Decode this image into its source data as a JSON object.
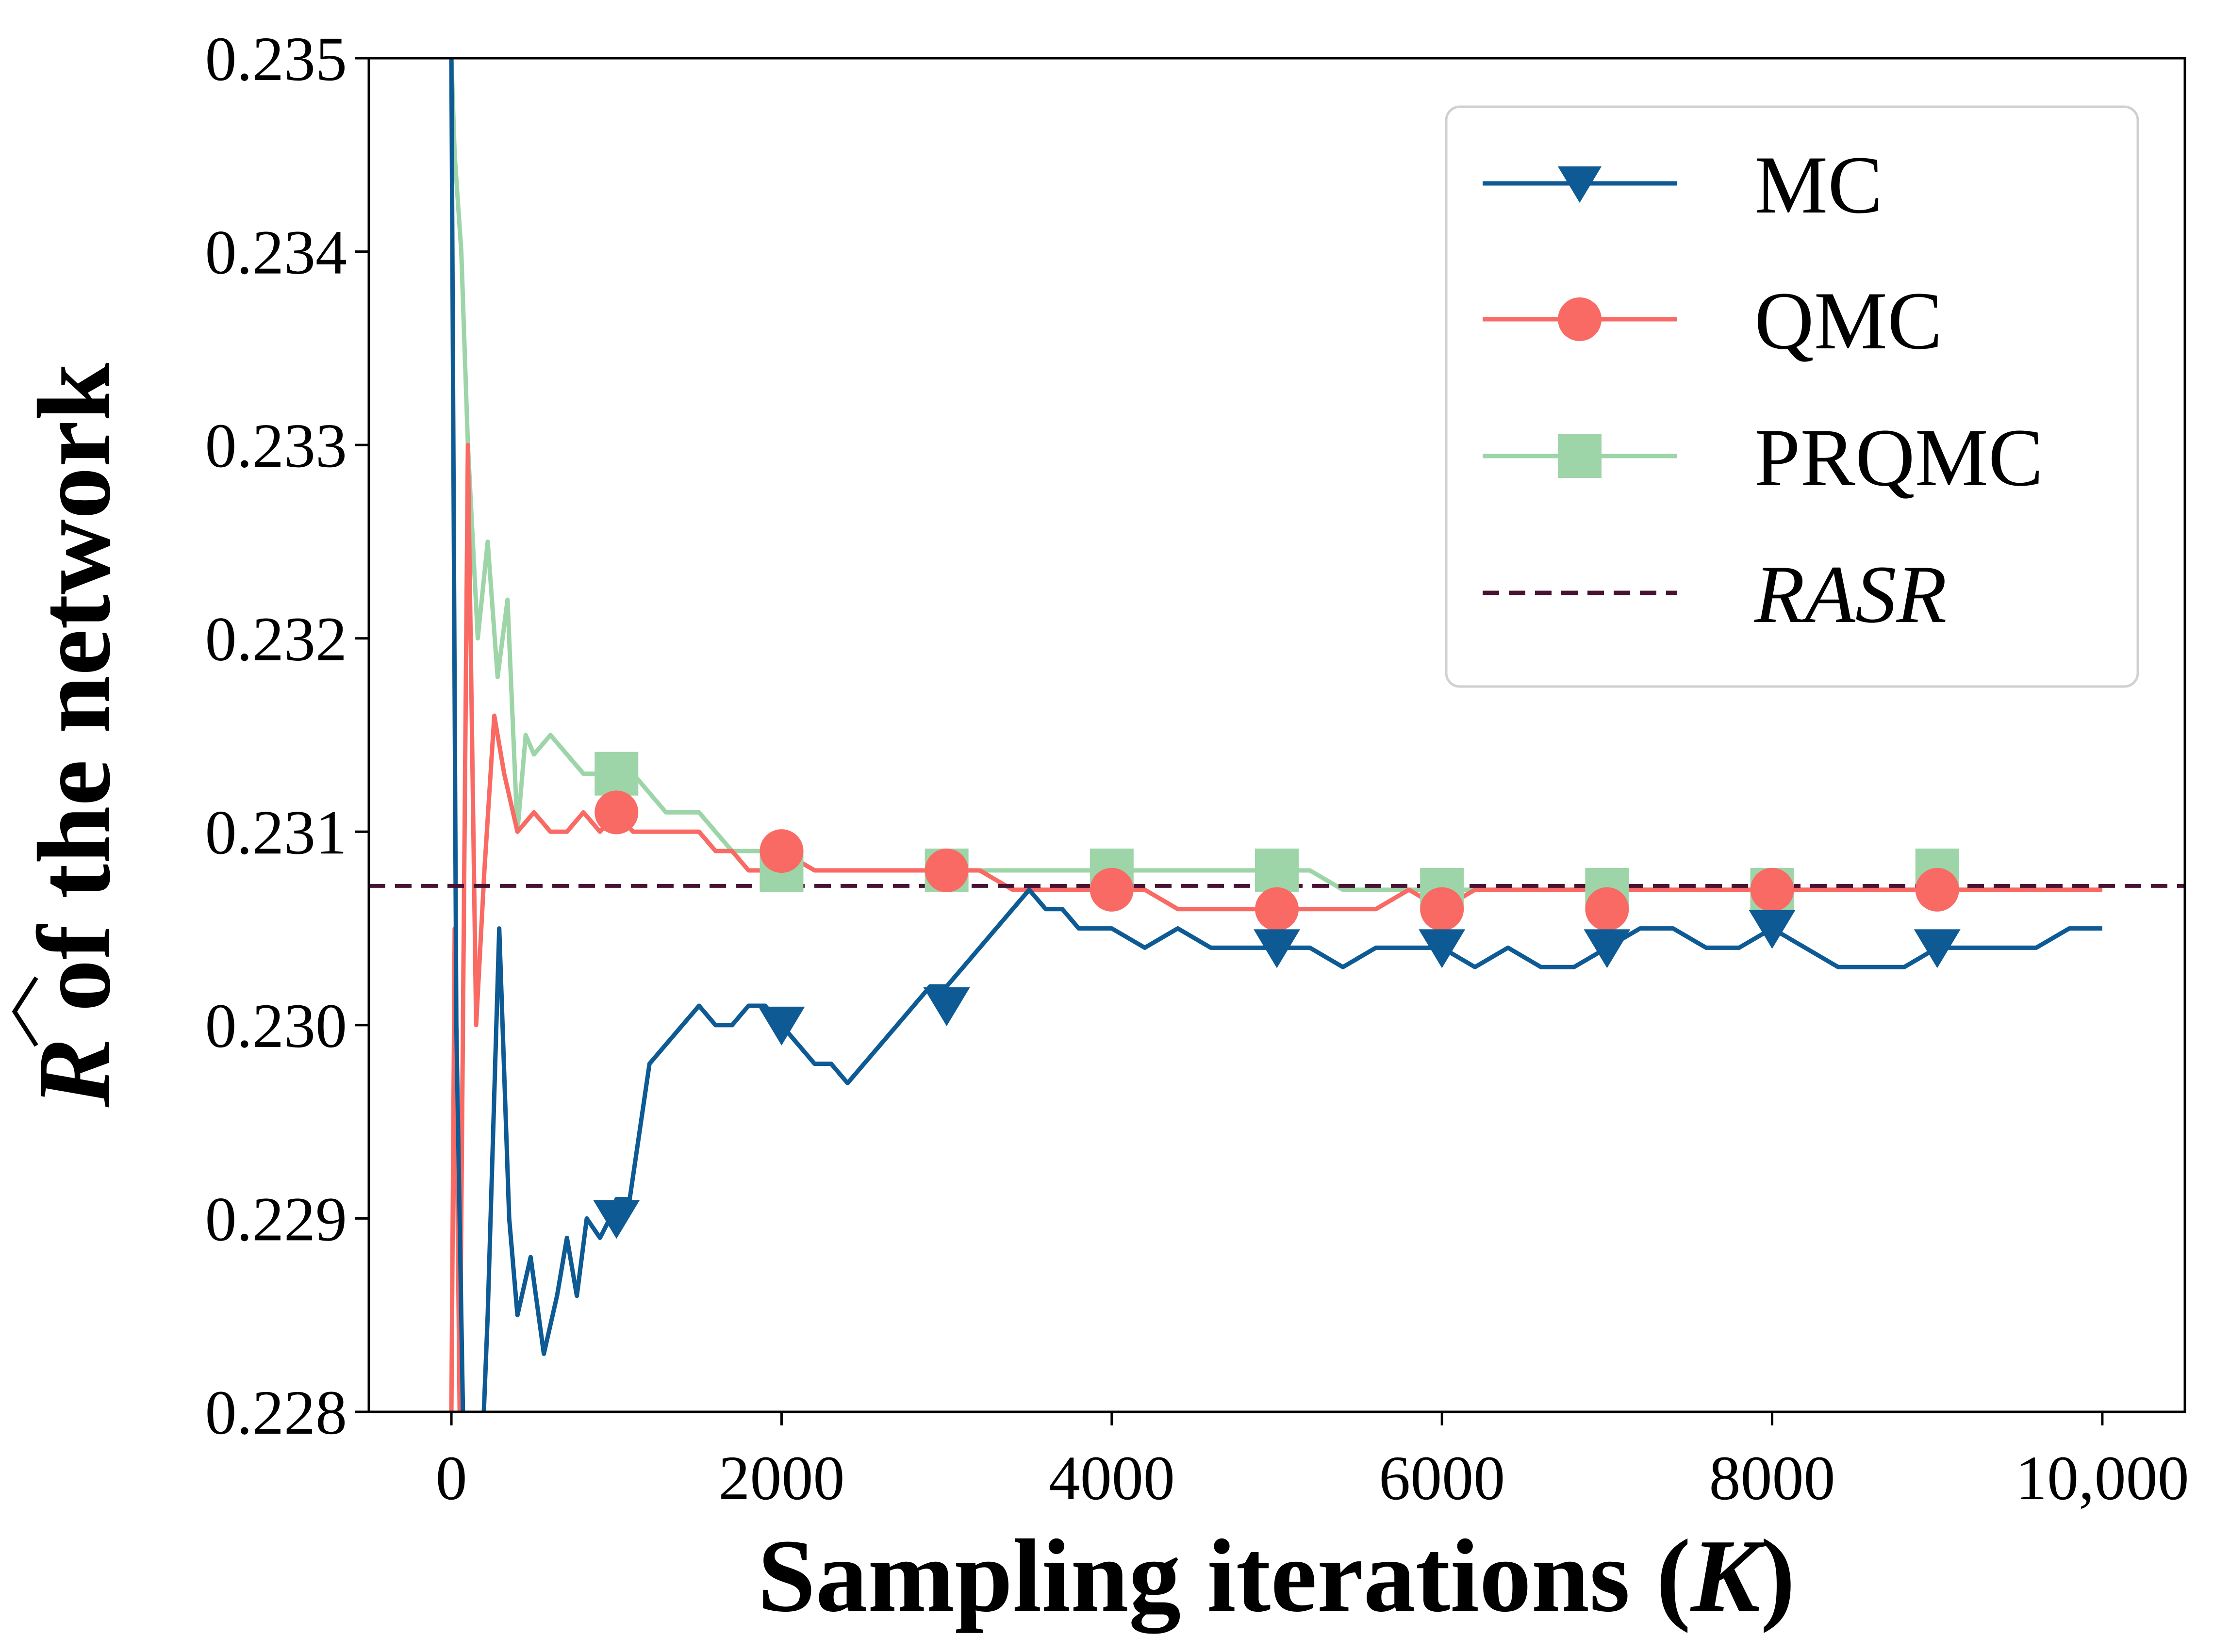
{
  "chart_data": {
    "type": "line",
    "title": "",
    "xlabel_prefix": "Sampling iterations (",
    "xlabel_var": "K",
    "xlabel_suffix": ")",
    "ylabel_var": "R",
    "ylabel_suffix": " of the network",
    "xlim": [
      -500,
      10500
    ],
    "ylim": [
      0.228,
      0.235
    ],
    "xticks": [
      0,
      2000,
      4000,
      6000,
      8000,
      10000
    ],
    "xtick_labels": [
      "0",
      "2000",
      "4000",
      "6000",
      "8000",
      "10,000"
    ],
    "yticks": [
      0.228,
      0.229,
      0.23,
      0.231,
      0.232,
      0.233,
      0.234,
      0.235
    ],
    "ytick_labels": [
      "0.228",
      "0.229",
      "0.230",
      "0.231",
      "0.232",
      "0.233",
      "0.234",
      "0.235"
    ],
    "grid": false,
    "legend_position": "top-right",
    "series": [
      {
        "name": "MC",
        "color": "#0d5a94",
        "marker": "triangle-down",
        "x": [
          0,
          30,
          80,
          150,
          220,
          290,
          350,
          400,
          480,
          560,
          640,
          700,
          760,
          820,
          900,
          960,
          1000,
          1080,
          1200,
          1300,
          1400,
          1500,
          1600,
          1700,
          1800,
          1900,
          2000,
          2100,
          2200,
          2300,
          2400,
          2500,
          2600,
          2700,
          2800,
          2900,
          3000,
          3100,
          3200,
          3300,
          3400,
          3500,
          3600,
          3700,
          3800,
          3900,
          4000,
          4200,
          4400,
          4600,
          4800,
          5000,
          5200,
          5400,
          5600,
          5800,
          6000,
          6200,
          6400,
          6600,
          6800,
          7000,
          7200,
          7400,
          7600,
          7800,
          8000,
          8200,
          8400,
          8600,
          8800,
          9000,
          9200,
          9400,
          9600,
          9800,
          10000
        ],
        "y": [
          0.235,
          0.23,
          0.2275,
          0.227,
          0.2285,
          0.2305,
          0.229,
          0.2285,
          0.2288,
          0.2283,
          0.2286,
          0.2289,
          0.2286,
          0.229,
          0.2289,
          0.229,
          0.2291,
          0.2291,
          0.2298,
          0.2299,
          0.23,
          0.2301,
          0.23,
          0.23,
          0.2301,
          0.2301,
          0.23,
          0.2299,
          0.2298,
          0.2298,
          0.2297,
          0.2298,
          0.2299,
          0.23,
          0.2301,
          0.2302,
          0.2302,
          0.2303,
          0.2304,
          0.2305,
          0.2306,
          0.2307,
          0.2306,
          0.2306,
          0.2305,
          0.2305,
          0.2305,
          0.2304,
          0.2305,
          0.2304,
          0.2304,
          0.2304,
          0.2304,
          0.2303,
          0.2304,
          0.2304,
          0.2304,
          0.2303,
          0.2304,
          0.2303,
          0.2303,
          0.2304,
          0.2305,
          0.2305,
          0.2304,
          0.2304,
          0.2305,
          0.2304,
          0.2303,
          0.2303,
          0.2303,
          0.2304,
          0.2304,
          0.2304,
          0.2304,
          0.2305,
          0.2305
        ],
        "marker_x": [
          1000,
          2000,
          3000,
          5000,
          6000,
          7000,
          8000,
          9000
        ],
        "marker_y": [
          0.229,
          0.23,
          0.2301,
          0.2304,
          0.2304,
          0.2304,
          0.2305,
          0.2304
        ]
      },
      {
        "name": "QMC",
        "color": "#f86a63",
        "marker": "circle",
        "x": [
          0,
          20,
          50,
          100,
          150,
          200,
          260,
          320,
          400,
          500,
          600,
          700,
          800,
          900,
          1000,
          1100,
          1200,
          1300,
          1400,
          1500,
          1600,
          1700,
          1800,
          1900,
          2000,
          2200,
          2400,
          2600,
          2800,
          3000,
          3200,
          3400,
          3600,
          3800,
          4000,
          4200,
          4400,
          4600,
          4800,
          5000,
          5200,
          5400,
          5600,
          5800,
          6000,
          6200,
          6400,
          6600,
          6800,
          7000,
          7200,
          7400,
          7600,
          7800,
          8000,
          8200,
          8400,
          8600,
          8800,
          9000,
          9200,
          9400,
          9600,
          9800,
          10000
        ],
        "y": [
          0.228,
          0.2305,
          0.228,
          0.233,
          0.23,
          0.2308,
          0.2316,
          0.2313,
          0.231,
          0.2311,
          0.231,
          0.231,
          0.2311,
          0.231,
          0.2311,
          0.231,
          0.231,
          0.231,
          0.231,
          0.231,
          0.2309,
          0.2309,
          0.2308,
          0.2308,
          0.2309,
          0.2308,
          0.2308,
          0.2308,
          0.2308,
          0.2308,
          0.2308,
          0.2307,
          0.2307,
          0.2307,
          0.2307,
          0.2307,
          0.2306,
          0.2306,
          0.2306,
          0.2306,
          0.2306,
          0.2306,
          0.2306,
          0.2307,
          0.2306,
          0.2307,
          0.2307,
          0.2307,
          0.2307,
          0.2307,
          0.2307,
          0.2307,
          0.2307,
          0.2307,
          0.2307,
          0.2307,
          0.2307,
          0.2307,
          0.2307,
          0.2307,
          0.2307,
          0.2307,
          0.2307,
          0.2307,
          0.2307
        ],
        "marker_x": [
          1000,
          2000,
          3000,
          4000,
          5000,
          6000,
          7000,
          8000,
          9000
        ],
        "marker_y": [
          0.2311,
          0.2309,
          0.2308,
          0.2307,
          0.2306,
          0.2306,
          0.2306,
          0.2307,
          0.2307
        ]
      },
      {
        "name": "PRQMC",
        "color": "#9dd5a8",
        "marker": "square",
        "x": [
          0,
          20,
          60,
          100,
          160,
          220,
          280,
          340,
          400,
          450,
          500,
          600,
          700,
          800,
          900,
          1000,
          1100,
          1200,
          1300,
          1400,
          1500,
          1600,
          1700,
          1800,
          1900,
          2000,
          2200,
          2400,
          2600,
          2800,
          3000,
          3200,
          3400,
          3600,
          3800,
          4000,
          4200,
          4400,
          4600,
          4800,
          5000,
          5200,
          5400,
          5600,
          5800,
          6000,
          6200,
          6400,
          6600,
          6800,
          7000,
          7200,
          7400,
          7600,
          7800,
          8000,
          8200,
          8400,
          8600,
          8800,
          9000,
          9200,
          9400,
          9600,
          9800,
          10000
        ],
        "y": [
          0.235,
          0.2345,
          0.234,
          0.233,
          0.232,
          0.2325,
          0.2318,
          0.2322,
          0.231,
          0.2315,
          0.2314,
          0.2315,
          0.2314,
          0.2313,
          0.2313,
          0.2312,
          0.2313,
          0.2312,
          0.2311,
          0.2311,
          0.2311,
          0.231,
          0.2309,
          0.2309,
          0.2309,
          0.2309,
          0.2308,
          0.2308,
          0.2308,
          0.2308,
          0.2308,
          0.2308,
          0.2308,
          0.2308,
          0.2308,
          0.2308,
          0.2308,
          0.2308,
          0.2308,
          0.2308,
          0.2308,
          0.2308,
          0.2307,
          0.2307,
          0.2307,
          0.2307,
          0.2307,
          0.2307,
          0.2307,
          0.2307,
          0.2307,
          0.2307,
          0.2307,
          0.2307,
          0.2307,
          0.2307,
          0.2307,
          0.2307,
          0.2307,
          0.2307,
          0.2307,
          0.2307,
          0.2307,
          0.2307,
          0.2307,
          0.2307
        ],
        "marker_x": [
          1000,
          2000,
          3000,
          4000,
          5000,
          6000,
          7000,
          8000,
          9000
        ],
        "marker_y": [
          0.2313,
          0.2308,
          0.2308,
          0.2308,
          0.2308,
          0.2307,
          0.2307,
          0.2307,
          0.2308
        ]
      }
    ],
    "reference_line": {
      "name": "RASR",
      "value": 0.23072,
      "color": "#4a1232",
      "style": "dashed"
    }
  }
}
